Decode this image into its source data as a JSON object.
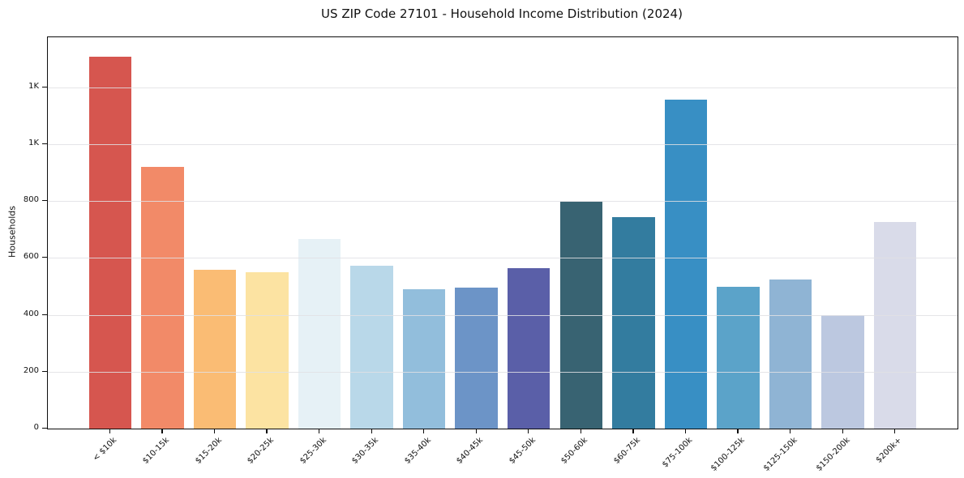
{
  "chart_data": {
    "type": "bar",
    "title": "US ZIP Code 27101 - Household Income Distribution (2024)",
    "xlabel": "",
    "ylabel": "Households",
    "categories": [
      "< $10k",
      "$10-15k",
      "$15-20k",
      "$20-25k",
      "$25-30k",
      "$30-35k",
      "$35-40k",
      "$40-45k",
      "$45-50k",
      "$50-60k",
      "$60-75k",
      "$75-100k",
      "$100-125k",
      "$125-150k",
      "$150-200k",
      "$200k+"
    ],
    "values": [
      1307,
      920,
      558,
      550,
      667,
      572,
      490,
      496,
      565,
      798,
      743,
      1156,
      498,
      524,
      400,
      725
    ],
    "bar_colors": [
      "#D6564F",
      "#F28A68",
      "#FABC74",
      "#FCE3A2",
      "#E6F1F6",
      "#B9D8E9",
      "#92BEDC",
      "#6C94C7",
      "#5A5FA8",
      "#386372",
      "#337C9F",
      "#388FC4",
      "#5BA3C9",
      "#8FB4D4",
      "#BCC8E0",
      "#D9DBE9"
    ],
    "ylim": [
      0,
      1375
    ],
    "yticks": {
      "values": [
        0,
        200,
        400,
        600,
        800,
        1000,
        1200
      ],
      "labels": [
        "0",
        "200",
        "400",
        "600",
        "800",
        "1K",
        "1K"
      ]
    },
    "grid": "horizontal",
    "legend": "none",
    "background": "#ffffff",
    "grid_color": "#e1e1e4",
    "spine_color": "#0d0d0d",
    "text_color": "#111111"
  }
}
